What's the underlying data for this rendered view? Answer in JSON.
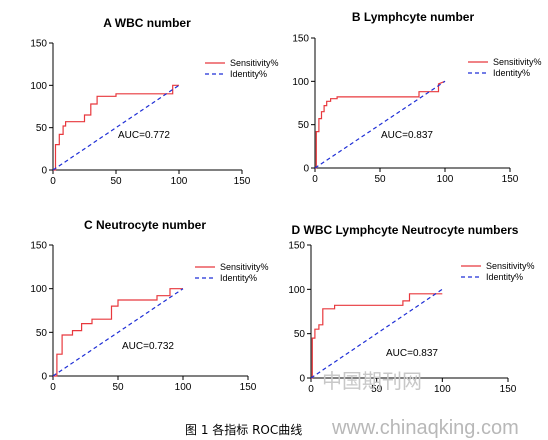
{
  "caption": "图 1 各指标 ROC曲线",
  "watermark": {
    "cn": "中国期刊网",
    "url": "www.chinaqking.com"
  },
  "colors": {
    "sensitivity": "#e8383d",
    "identity": "#1f2fd6",
    "axis": "#000000"
  },
  "chart_data": [
    {
      "type": "line",
      "title": "A WBC number",
      "xlim": [
        0,
        150
      ],
      "ylim": [
        0,
        150
      ],
      "xticks": [
        0,
        50,
        100,
        150
      ],
      "yticks": [
        0,
        50,
        100,
        150
      ],
      "legend_position": "top-right",
      "annotation": "AUC=0.772",
      "series": [
        {
          "name": "Sensitivity%",
          "style": "step",
          "x": [
            0,
            2,
            2,
            5,
            5,
            8,
            8,
            10,
            10,
            15,
            15,
            25,
            25,
            30,
            30,
            35,
            35,
            50,
            50,
            95,
            95,
            100
          ],
          "y": [
            0,
            0,
            30,
            30,
            42,
            42,
            52,
            52,
            57,
            57,
            57,
            57,
            65,
            65,
            78,
            78,
            87,
            87,
            90,
            90,
            100,
            100
          ]
        },
        {
          "name": "Identity%",
          "style": "dashed",
          "x": [
            0,
            100
          ],
          "y": [
            0,
            100
          ]
        }
      ]
    },
    {
      "type": "line",
      "title": "B Lymphcyte number",
      "xlim": [
        0,
        150
      ],
      "ylim": [
        0,
        150
      ],
      "xticks": [
        0,
        50,
        100,
        150
      ],
      "yticks": [
        0,
        50,
        100,
        150
      ],
      "legend_position": "top-right",
      "annotation": "AUC=0.837",
      "series": [
        {
          "name": "Sensitivity%",
          "style": "step",
          "x": [
            0,
            1,
            1,
            3,
            3,
            5,
            5,
            7,
            7,
            9,
            9,
            12,
            12,
            17,
            17,
            80,
            80,
            95,
            95,
            100
          ],
          "y": [
            0,
            0,
            42,
            42,
            57,
            57,
            65,
            65,
            72,
            72,
            77,
            77,
            80,
            80,
            82,
            82,
            88,
            88,
            97,
            100
          ]
        },
        {
          "name": "Identity%",
          "style": "dashed",
          "x": [
            0,
            100
          ],
          "y": [
            0,
            100
          ]
        }
      ]
    },
    {
      "type": "line",
      "title": "C  Neutrocyte number",
      "xlim": [
        0,
        150
      ],
      "ylim": [
        0,
        150
      ],
      "xticks": [
        0,
        50,
        100,
        150
      ],
      "yticks": [
        0,
        50,
        100,
        150
      ],
      "legend_position": "top-right",
      "annotation": "AUC=0.732",
      "series": [
        {
          "name": "Sensitivity%",
          "style": "step",
          "x": [
            0,
            3,
            3,
            7,
            7,
            15,
            15,
            22,
            22,
            30,
            30,
            45,
            45,
            50,
            50,
            80,
            80,
            90,
            90,
            100
          ],
          "y": [
            0,
            0,
            25,
            25,
            47,
            47,
            52,
            52,
            60,
            60,
            65,
            65,
            80,
            80,
            87,
            87,
            92,
            92,
            100,
            100
          ]
        },
        {
          "name": "Identity%",
          "style": "dashed",
          "x": [
            0,
            100
          ],
          "y": [
            0,
            100
          ]
        }
      ]
    },
    {
      "type": "line",
      "title": "D WBC Lymphcyte  Neutrocyte numbers",
      "xlim": [
        0,
        150
      ],
      "ylim": [
        0,
        150
      ],
      "xticks": [
        0,
        50,
        100,
        150
      ],
      "yticks": [
        0,
        50,
        100,
        150
      ],
      "legend_position": "top-right",
      "annotation": "AUC=0.837",
      "series": [
        {
          "name": "Sensitivity%",
          "style": "step",
          "x": [
            0,
            1,
            1,
            3,
            3,
            6,
            6,
            9,
            9,
            18,
            18,
            70,
            70,
            75,
            75,
            100
          ],
          "y": [
            0,
            0,
            45,
            45,
            55,
            55,
            60,
            60,
            78,
            78,
            82,
            82,
            87,
            87,
            95,
            95
          ]
        },
        {
          "name": "Identity%",
          "style": "dashed",
          "x": [
            0,
            100
          ],
          "y": [
            0,
            100
          ]
        }
      ]
    }
  ]
}
